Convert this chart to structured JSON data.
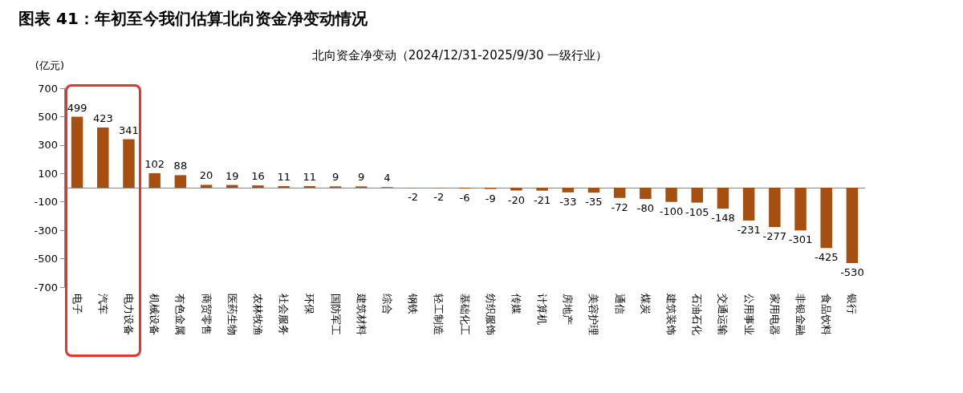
{
  "chart_data": {
    "type": "bar",
    "title": "图表 41：年初至今我们估算北向资金净变动情况",
    "subtitle": "北向资金净变动（2024/12/31-2025/9/30 一级行业）",
    "ylabel": "(亿元)",
    "categories": [
      "电子",
      "汽车",
      "电力设备",
      "机械设备",
      "有色金属",
      "商贸零售",
      "医药生物",
      "农林牧渔",
      "社会服务",
      "环保",
      "国防军工",
      "建筑材料",
      "综合",
      "钢铁",
      "轻工制造",
      "基础化工",
      "纺织服饰",
      "传媒",
      "计算机",
      "房地产",
      "美容护理",
      "通信",
      "煤炭",
      "建筑装饰",
      "石油石化",
      "交通运输",
      "公用事业",
      "家用电器",
      "非银金融",
      "食品饮料",
      "银行"
    ],
    "values": [
      499,
      423,
      341,
      102,
      88,
      20,
      19,
      16,
      11,
      11,
      9,
      9,
      4,
      -2,
      -2,
      -6,
      -9,
      -20,
      -21,
      -33,
      -35,
      -72,
      -80,
      -100,
      -105,
      -148,
      -231,
      -277,
      -301,
      -425,
      -530
    ],
    "color": "#a64f10",
    "ylim": [
      -700,
      700
    ],
    "yticks": [
      -700,
      -500,
      -300,
      -100,
      100,
      300,
      500,
      700
    ],
    "data_labels": true,
    "grid": false
  }
}
